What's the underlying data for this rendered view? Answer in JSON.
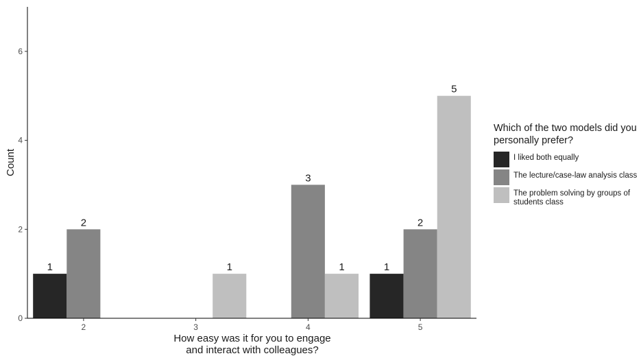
{
  "chart_data": {
    "type": "bar",
    "title": "",
    "xlabel": "How easy was it for you to engage and interact with colleagues?",
    "ylabel": "Count",
    "categories": [
      "2",
      "3",
      "4",
      "5"
    ],
    "ylim": [
      0,
      7
    ],
    "yticks": [
      0,
      2,
      4,
      6
    ],
    "grid": false,
    "legend_position": "right",
    "legend_title": "Which of the two models did you personally prefer?",
    "series": [
      {
        "name": "I liked both equally",
        "color": "#262626",
        "values": [
          1,
          0,
          0,
          1
        ]
      },
      {
        "name": "The lecture/case-law analysis class",
        "color": "#858585",
        "values": [
          2,
          0,
          3,
          2
        ]
      },
      {
        "name": "The problem solving by groups of students class",
        "color": "#bfbfbf",
        "values": [
          0,
          1,
          1,
          5
        ]
      }
    ]
  }
}
